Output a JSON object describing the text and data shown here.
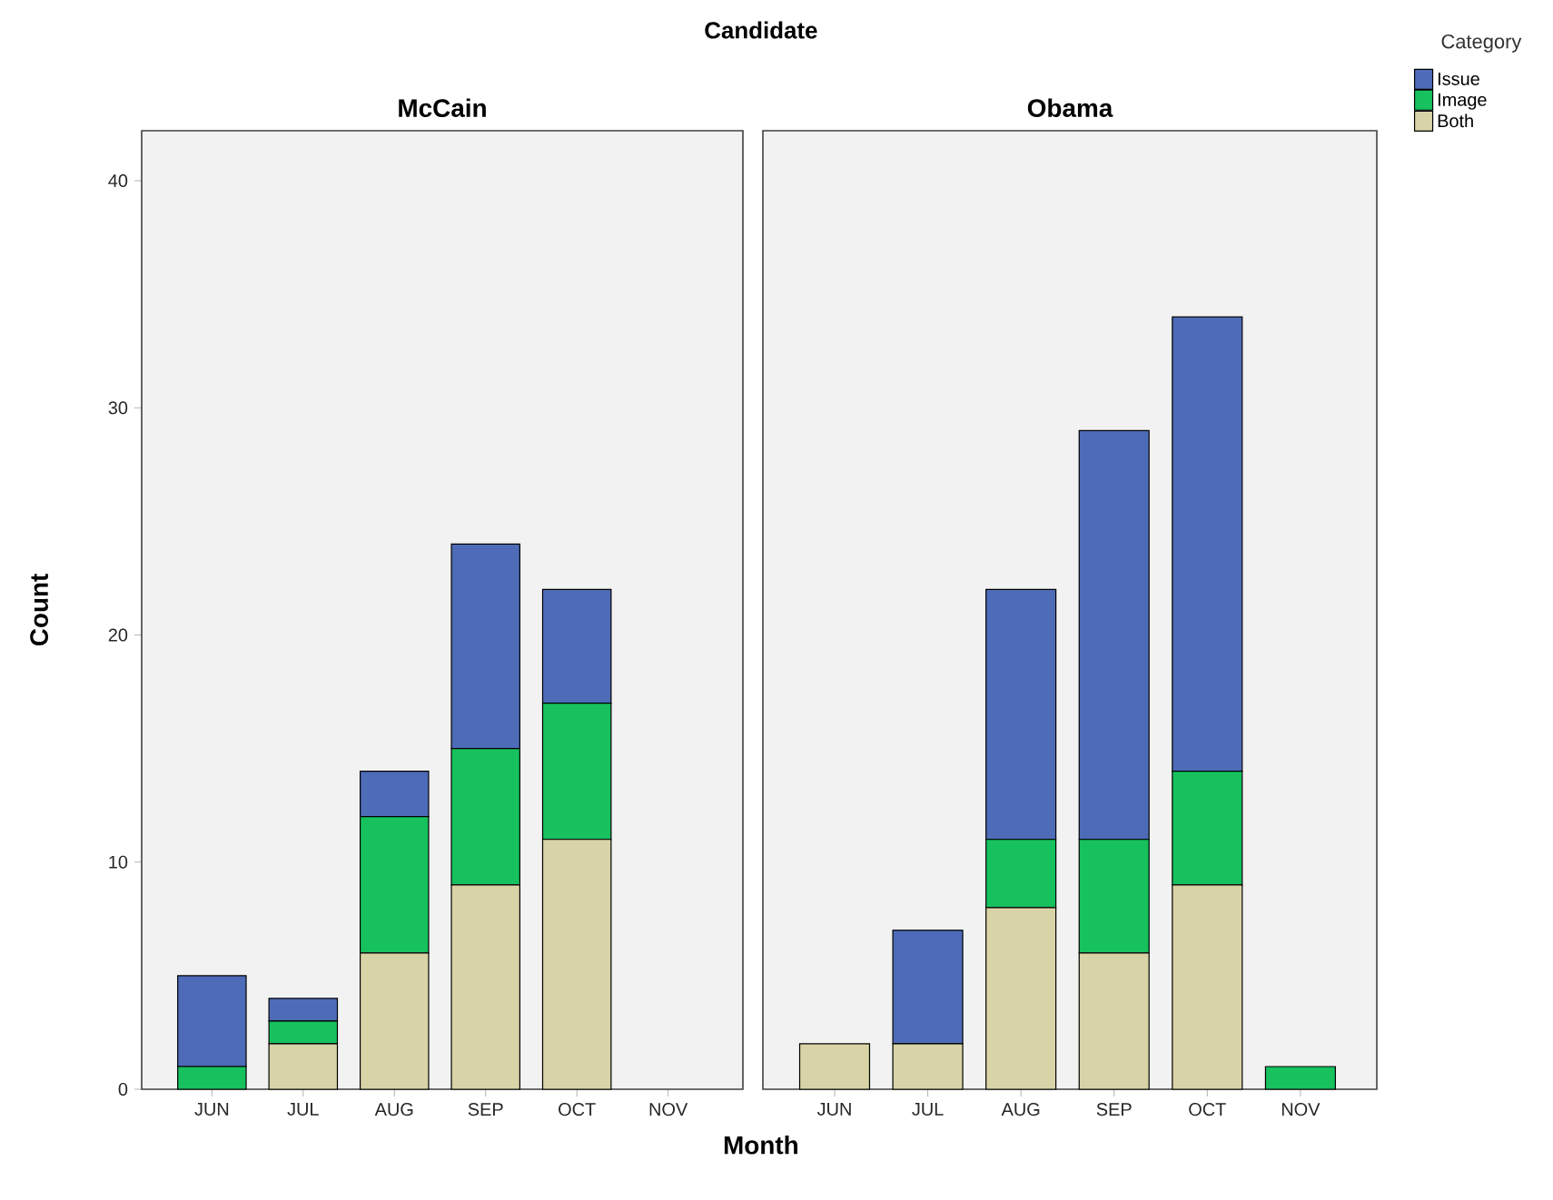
{
  "chart_data": [
    {
      "type": "bar",
      "title": "McCain",
      "xlabel": "Month",
      "ylabel": "Count",
      "annotations": [
        "Candidate"
      ],
      "stacked": true,
      "grid": false,
      "legend": false,
      "categories": [
        "JUN",
        "JUL",
        "AUG",
        "SEP",
        "OCT",
        "NOV"
      ],
      "ylim": [
        0,
        42.2
      ],
      "yticks": [
        0,
        10,
        20,
        30,
        40
      ],
      "series": [
        {
          "color": "#d9d4a7",
          "values": [
            0,
            2,
            6,
            9,
            11,
            0
          ]
        },
        {
          "color": "#16c15e",
          "values": [
            1,
            1,
            6,
            6,
            6,
            0
          ]
        },
        {
          "color": "#4e6bb8",
          "values": [
            4,
            1,
            2,
            9,
            5,
            0
          ]
        }
      ]
    },
    {
      "type": "bar",
      "title": "Obama",
      "legend_title": "Category",
      "stacked": true,
      "grid": false,
      "legend": "top right",
      "tick_labels": "x",
      "categories": [
        "JUN",
        "JUL",
        "AUG",
        "SEP",
        "OCT",
        "NOV"
      ],
      "ylim": [
        0,
        42.2
      ],
      "yticks": [
        0,
        10,
        20,
        30,
        40
      ],
      "series": [
        {
          "name": "Both",
          "color": "#d9d4a7",
          "values": [
            2,
            2,
            8,
            6,
            9,
            0
          ]
        },
        {
          "name": "Image",
          "color": "#16c15e",
          "values": [
            0,
            0,
            3,
            5,
            5,
            1
          ]
        },
        {
          "name": "Issue",
          "color": "#4e6bb8",
          "values": [
            0,
            5,
            11,
            18,
            20,
            0
          ]
        }
      ]
    }
  ]
}
